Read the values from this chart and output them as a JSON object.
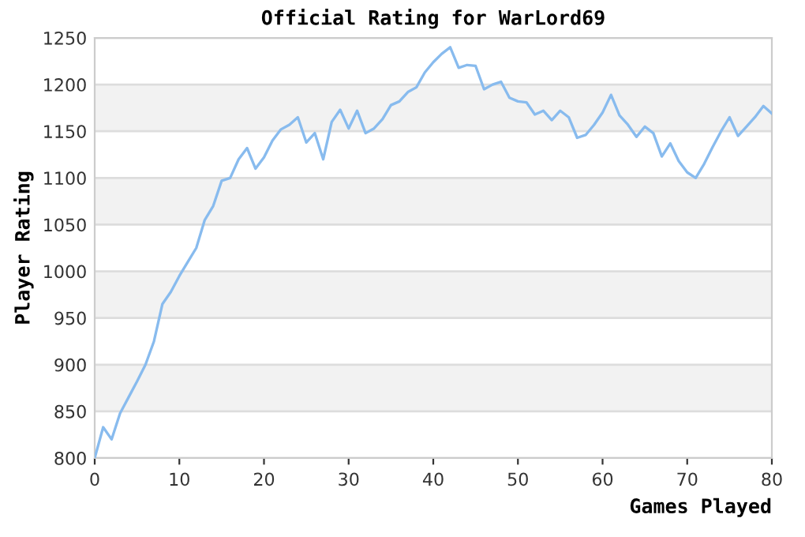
{
  "chart_data": {
    "type": "line",
    "title": "Official Rating for WarLord69",
    "xlabel": "Games Played",
    "ylabel": "Player Rating",
    "x": [
      0,
      1,
      2,
      3,
      4,
      5,
      6,
      7,
      8,
      9,
      10,
      11,
      12,
      13,
      14,
      15,
      16,
      17,
      18,
      19,
      20,
      21,
      22,
      23,
      24,
      25,
      26,
      27,
      28,
      29,
      30,
      31,
      32,
      33,
      34,
      35,
      36,
      37,
      38,
      39,
      40,
      41,
      42,
      43,
      44,
      45,
      46,
      47,
      48,
      49,
      50,
      51,
      52,
      53,
      54,
      55,
      56,
      57,
      58,
      59,
      60,
      61,
      62,
      63,
      64,
      65,
      66,
      67,
      68,
      69,
      70,
      71,
      72,
      73,
      74,
      75,
      76,
      77,
      78,
      79,
      80
    ],
    "series": [
      {
        "color": "#88bbee",
        "values": [
          800,
          833,
          820,
          848,
          865,
          882,
          900,
          925,
          965,
          978,
          995,
          1010,
          1025,
          1055,
          1070,
          1097,
          1100,
          1120,
          1132,
          1110,
          1122,
          1140,
          1152,
          1157,
          1165,
          1138,
          1148,
          1120,
          1160,
          1173,
          1153,
          1172,
          1148,
          1153,
          1163,
          1178,
          1182,
          1192,
          1197,
          1213,
          1224,
          1233,
          1240,
          1218,
          1221,
          1220,
          1195,
          1200,
          1203,
          1186,
          1182,
          1181,
          1168,
          1172,
          1162,
          1172,
          1165,
          1143,
          1146,
          1157,
          1170,
          1189,
          1167,
          1157,
          1144,
          1155,
          1148,
          1123,
          1137,
          1118,
          1106,
          1100,
          1115,
          1133,
          1150,
          1165,
          1145,
          1155,
          1165,
          1177,
          1169
        ]
      }
    ],
    "xlim": [
      0,
      80
    ],
    "xticks": [
      0,
      10,
      20,
      30,
      40,
      50,
      60,
      70,
      80
    ],
    "ylim": [
      800,
      1250
    ],
    "yticks": [
      800,
      850,
      900,
      950,
      1000,
      1050,
      1100,
      1150,
      1200,
      1250
    ],
    "grid": "y",
    "marker": "none",
    "line_style": "solid"
  }
}
